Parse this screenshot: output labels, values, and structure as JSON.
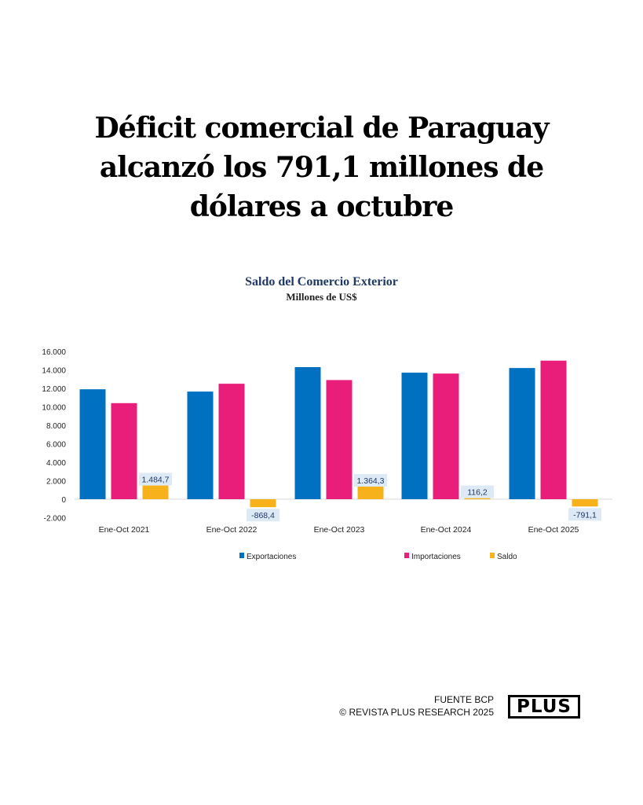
{
  "headline": [
    "Déficit comercial de Paraguay",
    "alcanzó los 791,1 millones de",
    "dólares a octubre"
  ],
  "footer": {
    "source": "FUENTE BCP",
    "copyright": "© REVISTA PLUS RESEARCH 2025",
    "logo": "PLUS"
  },
  "chart_data": {
    "type": "bar",
    "title": "Saldo del Comercio Exterior",
    "subtitle": "Millones de US$",
    "categories": [
      "Ene-Oct 2021",
      "Ene-Oct 2022",
      "Ene-Oct 2023",
      "Ene-Oct 2024",
      "Ene-Oct 2025"
    ],
    "series": [
      {
        "name": "Exportaciones",
        "color": "#0070c0",
        "values": [
          11900,
          11650,
          14300,
          13700,
          14200
        ]
      },
      {
        "name": "Importaciones",
        "color": "#e91e7a",
        "values": [
          10400,
          12500,
          12900,
          13600,
          15000
        ]
      },
      {
        "name": "Saldo",
        "color": "#f7b21b",
        "values": [
          1484.7,
          -868.4,
          1364.3,
          116.2,
          -791.1
        ]
      }
    ],
    "data_labels": [
      "1.484,7",
      "-868,4",
      "1.364,3",
      "116,2",
      "-791,1"
    ],
    "yticks": [
      -2000,
      0,
      2000,
      4000,
      6000,
      8000,
      10000,
      12000,
      14000,
      16000
    ],
    "ytick_labels": [
      "-2.000",
      "0",
      "2.000",
      "4.000",
      "6.000",
      "8.000",
      "10.000",
      "12.000",
      "14.000",
      "16.000"
    ],
    "ylim": [
      -2000,
      16000
    ],
    "grid": false,
    "legend": "bottom"
  }
}
